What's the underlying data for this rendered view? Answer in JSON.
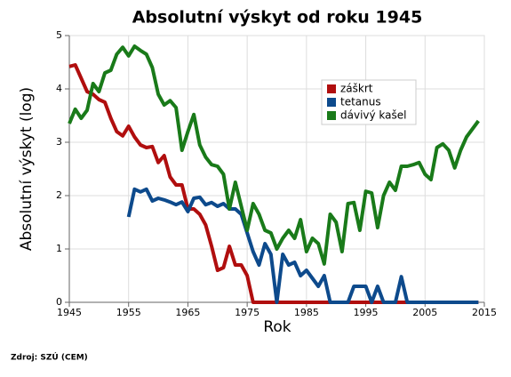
{
  "chart_data": {
    "type": "line",
    "title": "Absolutní výskyt od roku 1945",
    "x_label": "Rok",
    "y_label": "Absolutní výskyt (log)",
    "xlim": [
      1945,
      2015
    ],
    "xticks": [
      1945,
      1955,
      1965,
      1975,
      1985,
      1995,
      2005,
      2015
    ],
    "ylim": [
      0,
      5
    ],
    "yticks": [
      0,
      1,
      2,
      3,
      4,
      5
    ],
    "grid": true,
    "legend": "upper-right",
    "x": [
      1945,
      1946,
      1947,
      1948,
      1949,
      1950,
      1951,
      1952,
      1953,
      1954,
      1955,
      1956,
      1957,
      1958,
      1959,
      1960,
      1961,
      1962,
      1963,
      1964,
      1965,
      1966,
      1967,
      1968,
      1969,
      1970,
      1971,
      1972,
      1973,
      1974,
      1975,
      1976,
      1977,
      1978,
      1979,
      1980,
      1981,
      1982,
      1983,
      1984,
      1985,
      1986,
      1987,
      1988,
      1989,
      1990,
      1991,
      1992,
      1993,
      1994,
      1995,
      1996,
      1997,
      1998,
      1999,
      2000,
      2001,
      2002,
      2003,
      2004,
      2005,
      2006,
      2007,
      2008,
      2009,
      2010,
      2011,
      2012,
      2013,
      2014
    ],
    "series": [
      {
        "name": "záškrt",
        "color": "#b00e0e",
        "values": [
          4.42,
          4.45,
          4.2,
          3.95,
          3.9,
          3.8,
          3.75,
          3.45,
          3.2,
          3.12,
          3.3,
          3.1,
          2.95,
          2.9,
          2.92,
          2.62,
          2.75,
          2.35,
          2.2,
          2.2,
          1.75,
          1.75,
          1.65,
          1.45,
          1.05,
          0.6,
          0.65,
          1.05,
          0.7,
          0.7,
          0.5,
          0,
          0,
          0,
          0,
          0,
          0,
          0,
          0,
          0,
          0,
          0,
          0,
          0,
          0,
          0,
          0,
          0,
          0,
          0,
          0,
          0,
          0,
          0,
          0,
          0,
          0,
          0,
          0,
          0,
          0,
          0,
          0,
          0,
          0,
          0,
          0,
          0,
          0,
          0
        ]
      },
      {
        "name": "tetanus",
        "color": "#0d4a8c",
        "values": [
          null,
          null,
          null,
          null,
          null,
          null,
          null,
          null,
          null,
          null,
          1.6,
          2.12,
          2.07,
          2.12,
          1.9,
          1.95,
          1.92,
          1.88,
          1.83,
          1.88,
          1.7,
          1.95,
          1.97,
          1.83,
          1.87,
          1.8,
          1.85,
          1.75,
          1.75,
          1.65,
          1.3,
          0.95,
          0.7,
          1.1,
          0.9,
          0,
          0.9,
          0.7,
          0.75,
          0.5,
          0.6,
          0.45,
          0.3,
          0.5,
          0,
          0,
          0,
          0,
          0.3,
          0.3,
          0.3,
          0,
          0.3,
          0,
          0,
          0,
          0.48,
          0,
          0,
          0,
          0,
          0,
          0,
          0,
          0,
          0,
          0,
          0,
          0,
          0
        ]
      },
      {
        "name": "dávivý kašel",
        "color": "#197a19",
        "values": [
          3.35,
          3.62,
          3.45,
          3.6,
          4.1,
          3.95,
          4.3,
          4.35,
          4.65,
          4.78,
          4.62,
          4.8,
          4.72,
          4.65,
          4.4,
          3.9,
          3.7,
          3.78,
          3.65,
          2.85,
          3.2,
          3.52,
          2.95,
          2.72,
          2.58,
          2.55,
          2.4,
          1.75,
          2.25,
          1.8,
          1.35,
          1.85,
          1.65,
          1.35,
          1.3,
          1.0,
          1.2,
          1.35,
          1.2,
          1.55,
          0.95,
          1.2,
          1.1,
          0.72,
          1.65,
          1.5,
          0.95,
          1.85,
          1.87,
          1.35,
          2.08,
          2.05,
          1.4,
          2.0,
          2.25,
          2.1,
          2.55,
          2.55,
          2.58,
          2.62,
          2.4,
          2.3,
          2.9,
          2.97,
          2.85,
          2.52,
          2.85,
          3.1,
          3.25,
          3.4
        ]
      }
    ]
  },
  "source": "Zdroj: SZÚ (CEM)"
}
